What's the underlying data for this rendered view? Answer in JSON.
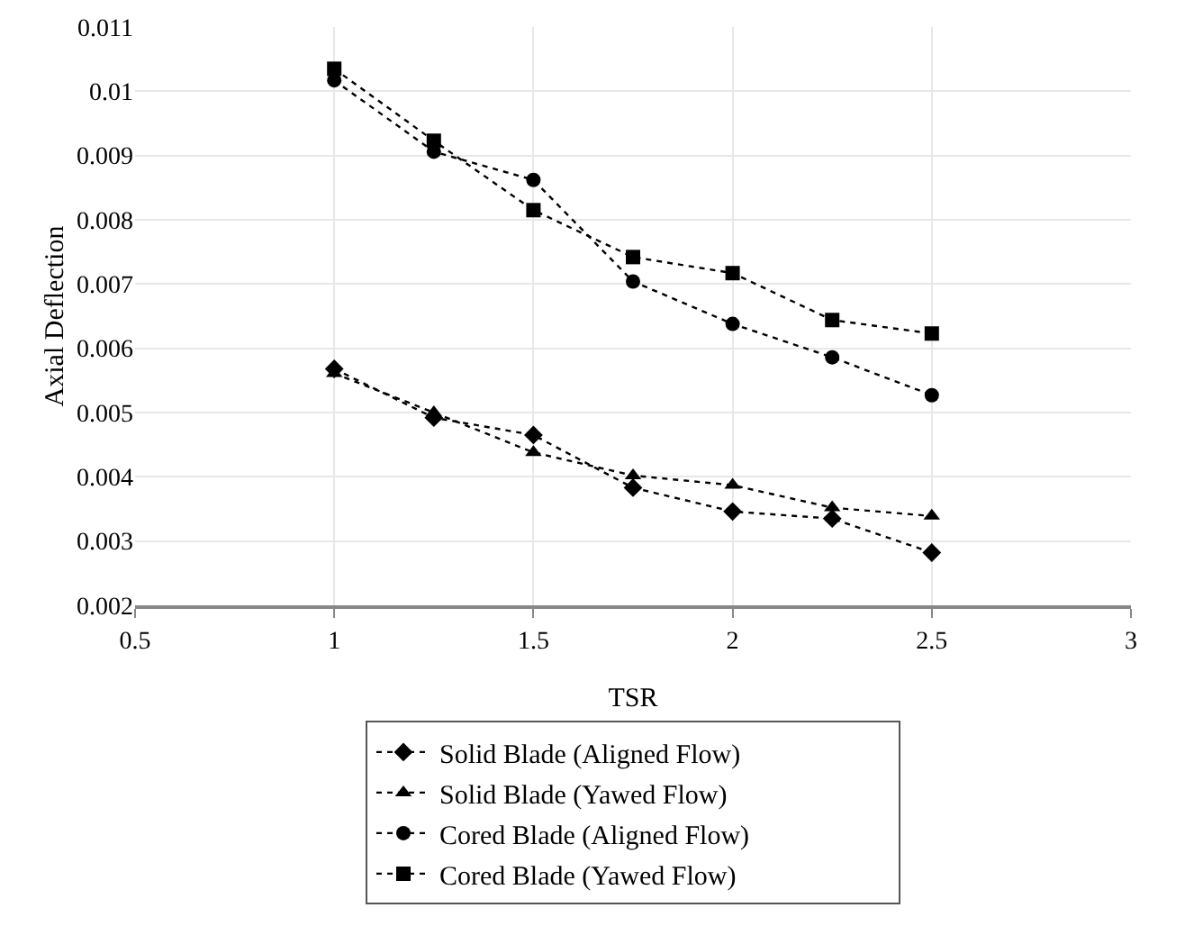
{
  "chart_data": {
    "type": "line",
    "xlabel": "TSR",
    "ylabel": "Axial Deflection",
    "x": [
      1,
      1.25,
      1.5,
      1.75,
      2,
      2.25,
      2.5
    ],
    "xlim": [
      0.5,
      3
    ],
    "xticks": [
      0.5,
      1,
      1.5,
      2,
      2.5,
      3
    ],
    "ylim": [
      0.002,
      0.011
    ],
    "yticks": [
      0.002,
      0.003,
      0.004,
      0.005,
      0.006,
      0.007,
      0.008,
      0.009,
      0.01,
      0.011
    ],
    "grid": true,
    "legend": "bottom",
    "line_style": "dotted",
    "series": [
      {
        "name": "Solid Blade (Aligned Flow)",
        "color": "#000000",
        "marker": "diamond",
        "values": [
          0.00568,
          0.00492,
          0.00465,
          0.00383,
          0.00346,
          0.00335,
          0.00282
        ]
      },
      {
        "name": "Solid Blade (Yawed Flow)",
        "color": "#000000",
        "marker": "triangle",
        "values": [
          0.00561,
          0.005,
          0.00438,
          0.00402,
          0.00387,
          0.00352,
          0.00339
        ]
      },
      {
        "name": "Cored Blade (Aligned Flow)",
        "color": "#000000",
        "marker": "circle",
        "values": [
          0.01017,
          0.00906,
          0.00862,
          0.00704,
          0.00638,
          0.00586,
          0.00527
        ]
      },
      {
        "name": "Cored Blade (Yawed Flow)",
        "color": "#000000",
        "marker": "square",
        "values": [
          0.01035,
          0.00923,
          0.00815,
          0.00742,
          0.00717,
          0.00644,
          0.00623
        ]
      }
    ]
  }
}
